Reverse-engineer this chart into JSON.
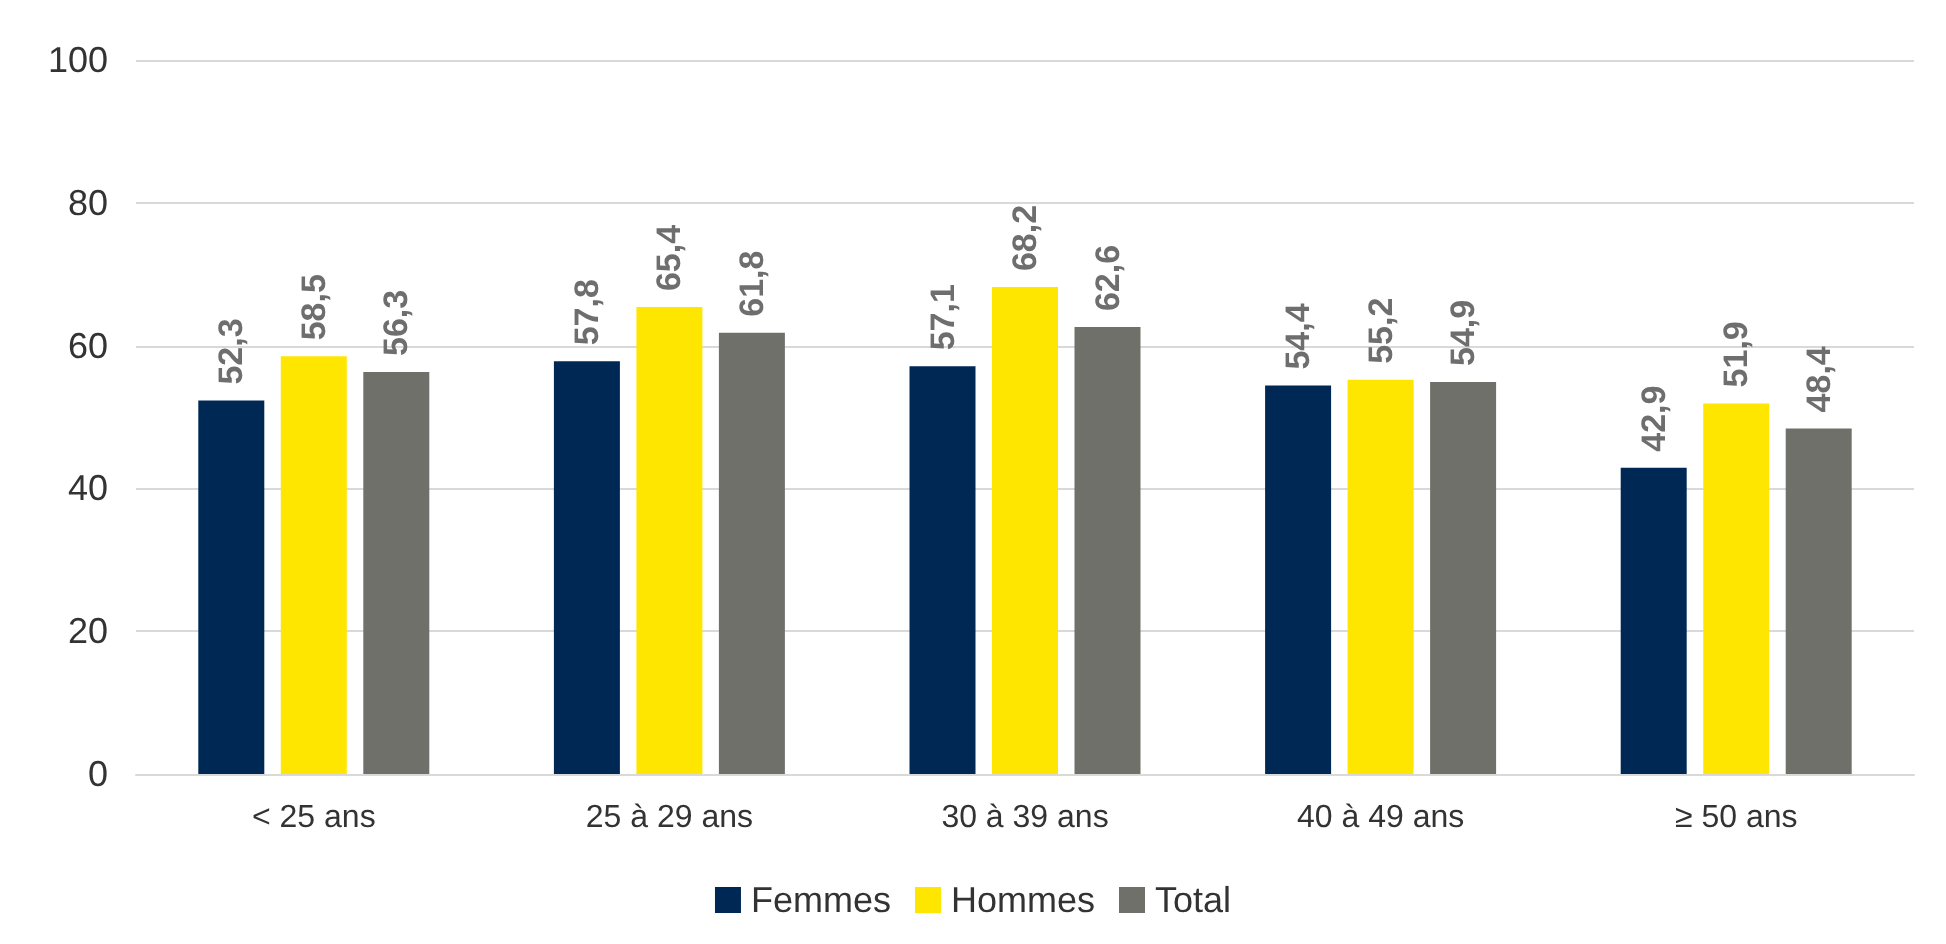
{
  "chart_data": {
    "type": "bar",
    "categories": [
      "< 25 ans",
      "25 à 29 ans",
      "30 à 39 ans",
      "40 à 49 ans",
      "≥ 50 ans"
    ],
    "series": [
      {
        "name": "Femmes",
        "color": "#002855",
        "values": [
          52.3,
          57.8,
          57.1,
          54.4,
          42.9
        ],
        "value_labels": [
          "52,3",
          "57,8",
          "57,1",
          "54,4",
          "42,9"
        ]
      },
      {
        "name": "Hommes",
        "color": "#ffe600",
        "values": [
          58.5,
          65.4,
          68.2,
          55.2,
          51.9
        ],
        "value_labels": [
          "58,5",
          "65,4",
          "68,2",
          "55,2",
          "51,9"
        ]
      },
      {
        "name": "Total",
        "color": "#70706b",
        "values": [
          56.3,
          61.8,
          62.6,
          54.9,
          48.4
        ],
        "value_labels": [
          "56,3",
          "61,8",
          "62,6",
          "54,9",
          "48,4"
        ]
      }
    ],
    "ylim": [
      0,
      100
    ],
    "yticks": [
      0,
      20,
      40,
      60,
      80,
      100
    ],
    "grid": "y",
    "legend": "bottom"
  }
}
